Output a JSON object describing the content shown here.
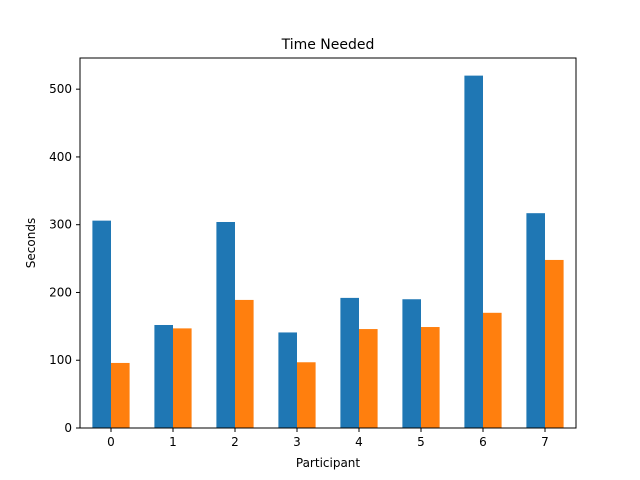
{
  "chart_data": {
    "type": "bar",
    "title": "Time Needed",
    "xlabel": "Participant",
    "ylabel": "Seconds",
    "categories": [
      "0",
      "1",
      "2",
      "3",
      "4",
      "5",
      "6",
      "7"
    ],
    "series": [
      {
        "color": "#1f77b4",
        "values": [
          306,
          152,
          304,
          141,
          192,
          190,
          520,
          317
        ]
      },
      {
        "color": "#ff7f0e",
        "values": [
          96,
          147,
          189,
          97,
          146,
          149,
          170,
          248
        ]
      }
    ],
    "ylim": [
      0,
      546
    ],
    "yticks": [
      0,
      100,
      200,
      300,
      400,
      500
    ],
    "grid": false
  }
}
